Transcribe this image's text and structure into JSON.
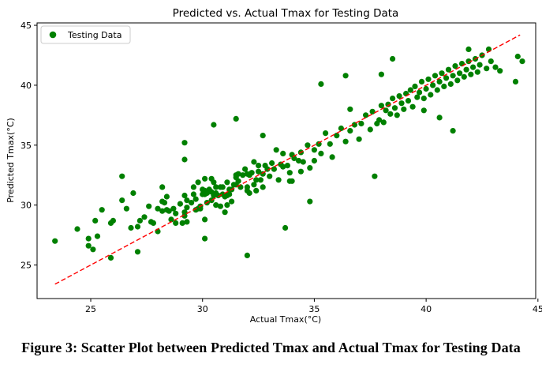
{
  "figure": {
    "caption": "Figure 3: Scatter Plot between Predicted Tmax and Actual Tmax for Testing Data"
  },
  "colors": {
    "points": "#008000",
    "ideal_line": "#ff0000",
    "axes": "#000000",
    "background": "#ffffff"
  },
  "chart_data": {
    "type": "scatter",
    "title": "Predicted vs. Actual Tmax for Testing Data",
    "xlabel": "Actual Tmax(°C)",
    "ylabel": "Predicted Tmax(°C)",
    "xlim": [
      22.6,
      44.9
    ],
    "ylim": [
      22.2,
      45.2
    ],
    "x_ticks": [
      25,
      30,
      35,
      40,
      45
    ],
    "y_ticks": [
      25,
      30,
      35,
      40,
      45
    ],
    "grid": false,
    "legend": {
      "position": "top-left",
      "entries": [
        "Testing Data"
      ]
    },
    "series": [
      {
        "name": "Testing Data",
        "marker": "circle",
        "color": "#008000",
        "points": [
          [
            23.4,
            27.0
          ],
          [
            24.4,
            28.0
          ],
          [
            24.9,
            26.6
          ],
          [
            25.1,
            26.3
          ],
          [
            25.2,
            28.7
          ],
          [
            25.3,
            27.4
          ],
          [
            25.5,
            29.6
          ],
          [
            25.9,
            28.5
          ],
          [
            25.9,
            25.6
          ],
          [
            26.0,
            28.7
          ],
          [
            26.4,
            32.4
          ],
          [
            26.4,
            30.4
          ],
          [
            26.6,
            29.7
          ],
          [
            26.8,
            28.1
          ],
          [
            27.1,
            28.2
          ],
          [
            27.2,
            28.7
          ],
          [
            27.4,
            29.0
          ],
          [
            27.6,
            29.9
          ],
          [
            27.7,
            28.6
          ],
          [
            27.8,
            28.5
          ],
          [
            28.0,
            29.7
          ],
          [
            28.0,
            27.8
          ],
          [
            28.2,
            30.3
          ],
          [
            28.2,
            31.5
          ],
          [
            28.2,
            29.5
          ],
          [
            28.3,
            30.2
          ],
          [
            28.4,
            30.7
          ],
          [
            28.4,
            29.6
          ],
          [
            28.5,
            29.5
          ],
          [
            28.6,
            28.8
          ],
          [
            28.7,
            29.7
          ],
          [
            28.8,
            29.3
          ],
          [
            28.8,
            28.5
          ],
          [
            29.0,
            30.1
          ],
          [
            29.1,
            28.5
          ],
          [
            29.2,
            29.1
          ],
          [
            29.2,
            29.4
          ],
          [
            29.2,
            30.8
          ],
          [
            29.3,
            30.4
          ],
          [
            29.3,
            28.6
          ],
          [
            29.3,
            29.8
          ],
          [
            29.5,
            30.2
          ],
          [
            29.6,
            31.5
          ],
          [
            29.6,
            30.9
          ],
          [
            29.7,
            30.5
          ],
          [
            29.7,
            29.6
          ],
          [
            29.8,
            31.9
          ],
          [
            29.8,
            29.7
          ],
          [
            29.9,
            29.9
          ],
          [
            29.9,
            29.7
          ],
          [
            30.0,
            30.9
          ],
          [
            30.0,
            31.3
          ],
          [
            30.1,
            32.2
          ],
          [
            30.1,
            31.2
          ],
          [
            30.1,
            28.8
          ],
          [
            30.1,
            30.9
          ],
          [
            30.2,
            30.2
          ],
          [
            30.2,
            31.0
          ],
          [
            30.3,
            31.3
          ],
          [
            30.4,
            32.2
          ],
          [
            30.4,
            30.4
          ],
          [
            30.4,
            31.1
          ],
          [
            30.5,
            31.9
          ],
          [
            30.5,
            30.8
          ],
          [
            30.6,
            30.0
          ],
          [
            30.6,
            31.5
          ],
          [
            30.6,
            31.0
          ],
          [
            30.7,
            30.8
          ],
          [
            30.8,
            29.9
          ],
          [
            30.8,
            31.5
          ],
          [
            30.9,
            30.9
          ],
          [
            30.9,
            31.5
          ],
          [
            31.0,
            29.4
          ],
          [
            31.0,
            30.7
          ],
          [
            31.1,
            31.9
          ],
          [
            31.1,
            30.8
          ],
          [
            31.1,
            30.0
          ],
          [
            31.2,
            31.3
          ],
          [
            31.2,
            30.9
          ],
          [
            31.3,
            31.3
          ],
          [
            31.3,
            30.3
          ],
          [
            31.4,
            31.7
          ],
          [
            31.5,
            32.3
          ],
          [
            31.5,
            32.5
          ],
          [
            31.5,
            31.7
          ],
          [
            31.6,
            32.6
          ],
          [
            31.6,
            32.0
          ],
          [
            31.7,
            31.5
          ],
          [
            31.8,
            32.5
          ],
          [
            31.9,
            33.0
          ],
          [
            32.0,
            31.2
          ],
          [
            32.0,
            32.6
          ],
          [
            32.0,
            31.5
          ],
          [
            32.1,
            31.0
          ],
          [
            32.1,
            32.5
          ],
          [
            32.2,
            32.7
          ],
          [
            32.3,
            33.6
          ],
          [
            32.3,
            31.7
          ],
          [
            32.4,
            32.1
          ],
          [
            32.4,
            31.2
          ],
          [
            32.5,
            33.3
          ],
          [
            32.5,
            32.8
          ],
          [
            32.6,
            32.1
          ],
          [
            32.7,
            32.6
          ],
          [
            32.7,
            31.5
          ],
          [
            32.8,
            33.3
          ],
          [
            32.9,
            33.0
          ],
          [
            33.0,
            32.4
          ],
          [
            33.1,
            33.5
          ],
          [
            33.2,
            33.0
          ],
          [
            33.3,
            34.6
          ],
          [
            33.4,
            32.1
          ],
          [
            33.5,
            33.4
          ],
          [
            33.6,
            34.3
          ],
          [
            33.6,
            33.2
          ],
          [
            33.8,
            33.3
          ],
          [
            33.9,
            32.7
          ],
          [
            34.0,
            34.2
          ],
          [
            34.0,
            32.0
          ],
          [
            34.1,
            33.9
          ],
          [
            34.3,
            33.7
          ],
          [
            34.4,
            34.4
          ],
          [
            34.4,
            32.8
          ],
          [
            34.5,
            33.6
          ],
          [
            34.7,
            35.0
          ],
          [
            34.8,
            33.1
          ],
          [
            35.0,
            34.6
          ],
          [
            35.0,
            33.7
          ],
          [
            35.2,
            35.1
          ],
          [
            35.3,
            34.3
          ],
          [
            35.5,
            36.0
          ],
          [
            35.7,
            35.1
          ],
          [
            35.8,
            34.0
          ],
          [
            36.0,
            35.8
          ],
          [
            36.2,
            36.4
          ],
          [
            36.4,
            35.3
          ],
          [
            36.6,
            36.2
          ],
          [
            36.8,
            36.7
          ],
          [
            37.0,
            35.5
          ],
          [
            37.1,
            36.8
          ],
          [
            37.3,
            37.5
          ],
          [
            37.5,
            36.3
          ],
          [
            37.6,
            37.8
          ],
          [
            37.8,
            36.8
          ],
          [
            37.9,
            37.1
          ],
          [
            38.0,
            38.3
          ],
          [
            38.1,
            36.9
          ],
          [
            38.2,
            37.9
          ],
          [
            38.3,
            38.4
          ],
          [
            38.4,
            37.6
          ],
          [
            38.5,
            38.9
          ],
          [
            38.6,
            38.1
          ],
          [
            38.7,
            37.5
          ],
          [
            38.8,
            39.1
          ],
          [
            38.9,
            38.5
          ],
          [
            39.0,
            38.0
          ],
          [
            39.1,
            39.3
          ],
          [
            39.2,
            38.7
          ],
          [
            39.3,
            39.6
          ],
          [
            39.4,
            38.2
          ],
          [
            39.5,
            39.9
          ],
          [
            39.6,
            39.0
          ],
          [
            39.7,
            39.4
          ],
          [
            39.8,
            40.3
          ],
          [
            39.9,
            38.9
          ],
          [
            40.0,
            39.7
          ],
          [
            40.1,
            40.5
          ],
          [
            40.2,
            39.2
          ],
          [
            40.3,
            40.0
          ],
          [
            40.4,
            40.8
          ],
          [
            40.5,
            39.6
          ],
          [
            40.6,
            40.3
          ],
          [
            40.7,
            41.0
          ],
          [
            40.8,
            39.9
          ],
          [
            40.9,
            40.6
          ],
          [
            41.0,
            41.3
          ],
          [
            41.1,
            40.1
          ],
          [
            41.2,
            40.8
          ],
          [
            41.3,
            41.6
          ],
          [
            41.4,
            40.4
          ],
          [
            41.5,
            41.0
          ],
          [
            41.6,
            41.8
          ],
          [
            41.7,
            40.7
          ],
          [
            41.8,
            41.3
          ],
          [
            41.9,
            42.0
          ],
          [
            42.0,
            40.9
          ],
          [
            42.1,
            41.5
          ],
          [
            42.2,
            42.2
          ],
          [
            42.3,
            41.1
          ],
          [
            42.4,
            41.7
          ],
          [
            42.5,
            42.5
          ],
          [
            42.7,
            41.4
          ],
          [
            42.9,
            42.0
          ],
          [
            43.1,
            41.5
          ],
          [
            43.3,
            41.2
          ],
          [
            44.0,
            40.3
          ],
          [
            44.1,
            42.4
          ],
          [
            44.3,
            42.0
          ],
          [
            29.2,
            33.8
          ],
          [
            30.5,
            36.7
          ],
          [
            31.5,
            37.2
          ],
          [
            33.9,
            32.0
          ],
          [
            32.0,
            25.8
          ],
          [
            33.7,
            28.1
          ],
          [
            37.7,
            32.4
          ],
          [
            41.2,
            36.2
          ],
          [
            40.6,
            37.3
          ],
          [
            39.9,
            37.9
          ],
          [
            35.3,
            40.1
          ],
          [
            36.6,
            38.0
          ],
          [
            38.0,
            40.9
          ],
          [
            41.9,
            43.0
          ],
          [
            30.1,
            27.2
          ],
          [
            29.2,
            35.2
          ],
          [
            32.7,
            35.8
          ],
          [
            34.8,
            30.3
          ],
          [
            27.1,
            26.1
          ],
          [
            24.9,
            27.2
          ],
          [
            36.4,
            40.8
          ],
          [
            38.5,
            42.2
          ],
          [
            42.8,
            43.0
          ],
          [
            26.9,
            31.0
          ]
        ]
      }
    ],
    "reference_line": {
      "style": "dashed",
      "color": "#ff0000",
      "from": [
        23.4,
        23.4
      ],
      "to": [
        44.2,
        44.2
      ]
    }
  }
}
